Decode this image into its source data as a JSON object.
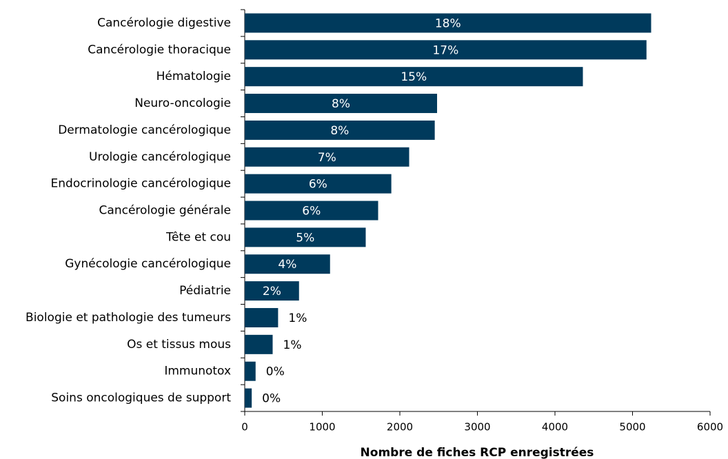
{
  "chart_data": {
    "type": "barh",
    "categories": [
      "Cancérologie digestive",
      "Cancérologie thoracique",
      "Hématologie",
      "Neuro-oncologie",
      "Dermatologie cancérologique",
      "Urologie cancérologique",
      "Endocrinologie cancérologique",
      "Cancérologie générale",
      "Tête et cou",
      "Gynécologie cancérologique",
      "Pédiatrie",
      "Biologie et pathologie des tumeurs",
      "Os et tissus mous",
      "Immunotox",
      "Soins oncologiques de support"
    ],
    "values": [
      5240,
      5180,
      4360,
      2480,
      2450,
      2120,
      1890,
      1720,
      1560,
      1100,
      700,
      430,
      360,
      140,
      90
    ],
    "share_labels": [
      "18%",
      "17%",
      "15%",
      "8%",
      "8%",
      "7%",
      "6%",
      "6%",
      "5%",
      "4%",
      "2%",
      "1%",
      "1%",
      "0%",
      "0%"
    ],
    "color": "#003a5c",
    "xlim": [
      0,
      6000
    ],
    "xticks": [
      0,
      1000,
      2000,
      3000,
      4000,
      5000,
      6000
    ],
    "xlabel": "Nombre de fiches RCP enregistrées",
    "grid": false
  }
}
